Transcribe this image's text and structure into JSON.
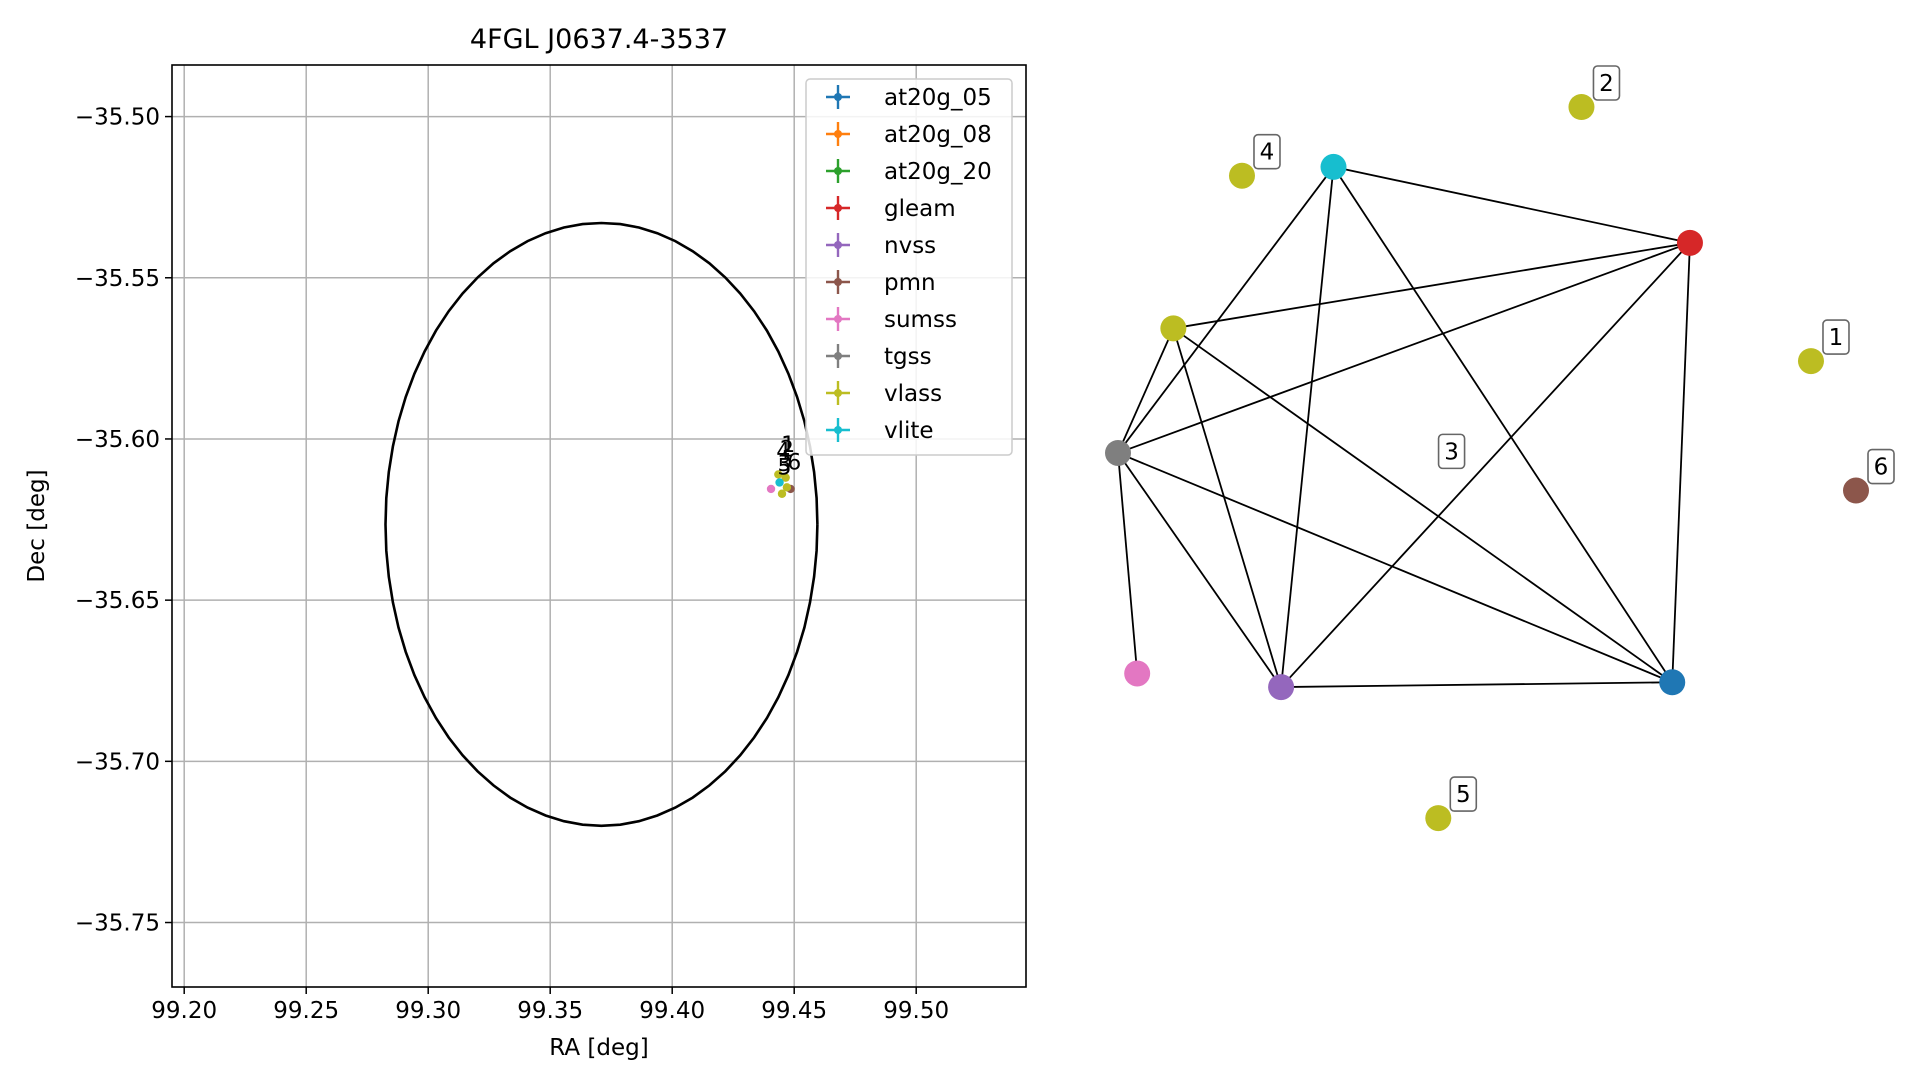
{
  "chart_data": [
    {
      "type": "scatter",
      "title": "4FGL J0637.4-3537",
      "xlabel": "RA [deg]",
      "ylabel": "Dec [deg]",
      "xlim": [
        99.195,
        99.545
      ],
      "ylim": [
        -35.77,
        -35.484
      ],
      "xticks": [
        99.2,
        99.25,
        99.3,
        99.35,
        99.4,
        99.45,
        99.5
      ],
      "xtick_labels": [
        "99.20",
        "99.25",
        "99.30",
        "99.35",
        "99.40",
        "99.45",
        "99.50"
      ],
      "yticks": [
        -35.5,
        -35.55,
        -35.6,
        -35.65,
        -35.7,
        -35.75
      ],
      "ytick_labels": [
        "−35.50",
        "−35.55",
        "−35.60",
        "−35.65",
        "−35.70",
        "−35.75"
      ],
      "grid": true,
      "legend_position": "top-right",
      "error_ellipse": {
        "center": [
          99.371,
          -35.6265
        ],
        "ra_half_width": 0.0885,
        "dec_half_height": 0.0935,
        "color": "#000000"
      },
      "series": [
        {
          "name": "at20g_05",
          "color": "#1f77b4",
          "points": []
        },
        {
          "name": "at20g_08",
          "color": "#ff7f0e",
          "points": []
        },
        {
          "name": "at20g_20",
          "color": "#2ca02c",
          "points": []
        },
        {
          "name": "gleam",
          "color": "#d62728",
          "points": []
        },
        {
          "name": "nvss",
          "color": "#9467bd",
          "points": []
        },
        {
          "name": "pmn",
          "color": "#8c564b",
          "points": [
            [
              99.4485,
              -35.6155
            ]
          ]
        },
        {
          "name": "sumss",
          "color": "#e377c2",
          "points": [
            [
              99.4405,
              -35.6155
            ]
          ]
        },
        {
          "name": "tgss",
          "color": "#7f7f7f",
          "points": []
        },
        {
          "name": "vlass",
          "color": "#bcbd22",
          "points": [
            [
              99.4435,
              -35.611
            ],
            [
              99.4465,
              -35.612
            ],
            [
              99.445,
              -35.617
            ],
            [
              99.447,
              -35.615
            ]
          ]
        },
        {
          "name": "vlite",
          "color": "#17becf",
          "points": [
            [
              99.444,
              -35.6135
            ]
          ]
        }
      ],
      "annotations": [
        {
          "text": "1",
          "x": 99.4475,
          "y": -35.604
        },
        {
          "text": "2",
          "x": 99.447,
          "y": -35.6055
        },
        {
          "text": "4",
          "x": 99.4455,
          "y": -35.606
        },
        {
          "text": "5",
          "x": 99.446,
          "y": -35.611
        },
        {
          "text": "6",
          "x": 99.45,
          "y": -35.6095
        },
        {
          "text": "3",
          "x": 99.446,
          "y": -35.61
        }
      ]
    },
    {
      "type": "network",
      "nodes": [
        {
          "id": "vlite",
          "color": "#17becf",
          "pos": [
            0.292,
            0.075
          ]
        },
        {
          "id": "gleam",
          "color": "#d62728",
          "pos": [
            0.775,
            0.17
          ]
        },
        {
          "id": "vlass_hub",
          "color": "#bcbd22",
          "pos": [
            0.075,
            0.277
          ]
        },
        {
          "id": "tgss",
          "color": "#7f7f7f",
          "pos": [
            0.0,
            0.433
          ]
        },
        {
          "id": "sumss",
          "color": "#e377c2",
          "pos": [
            0.026,
            0.709
          ]
        },
        {
          "id": "nvss",
          "color": "#9467bd",
          "pos": [
            0.221,
            0.726
          ]
        },
        {
          "id": "at20g_05",
          "color": "#1f77b4",
          "pos": [
            0.751,
            0.72
          ]
        },
        {
          "id": "vlass_1",
          "color": "#bcbd22",
          "pos": [
            0.939,
            0.318
          ],
          "label": "1"
        },
        {
          "id": "vlass_2",
          "color": "#bcbd22",
          "pos": [
            0.628,
            0.0
          ],
          "label": "2"
        },
        {
          "id": "vlass_4",
          "color": "#bcbd22",
          "pos": [
            0.168,
            0.086
          ],
          "label": "4"
        },
        {
          "id": "vlass_5",
          "color": "#bcbd22",
          "pos": [
            0.434,
            0.89
          ],
          "label": "5"
        },
        {
          "id": "pmn_6",
          "color": "#8c564b",
          "pos": [
            1.0,
            0.48
          ],
          "label": "6"
        }
      ],
      "edges": [
        [
          "vlite",
          "gleam"
        ],
        [
          "vlite",
          "tgss"
        ],
        [
          "vlite",
          "nvss"
        ],
        [
          "vlite",
          "at20g_05"
        ],
        [
          "gleam",
          "vlass_hub"
        ],
        [
          "gleam",
          "tgss"
        ],
        [
          "gleam",
          "nvss"
        ],
        [
          "gleam",
          "at20g_05"
        ],
        [
          "vlass_hub",
          "tgss"
        ],
        [
          "vlass_hub",
          "nvss"
        ],
        [
          "vlass_hub",
          "at20g_05"
        ],
        [
          "tgss",
          "sumss"
        ],
        [
          "tgss",
          "nvss"
        ],
        [
          "tgss",
          "at20g_05"
        ],
        [
          "nvss",
          "at20g_05"
        ]
      ],
      "floating_labels": [
        {
          "text": "3",
          "pos": [
            0.452,
            0.431
          ]
        }
      ]
    }
  ]
}
